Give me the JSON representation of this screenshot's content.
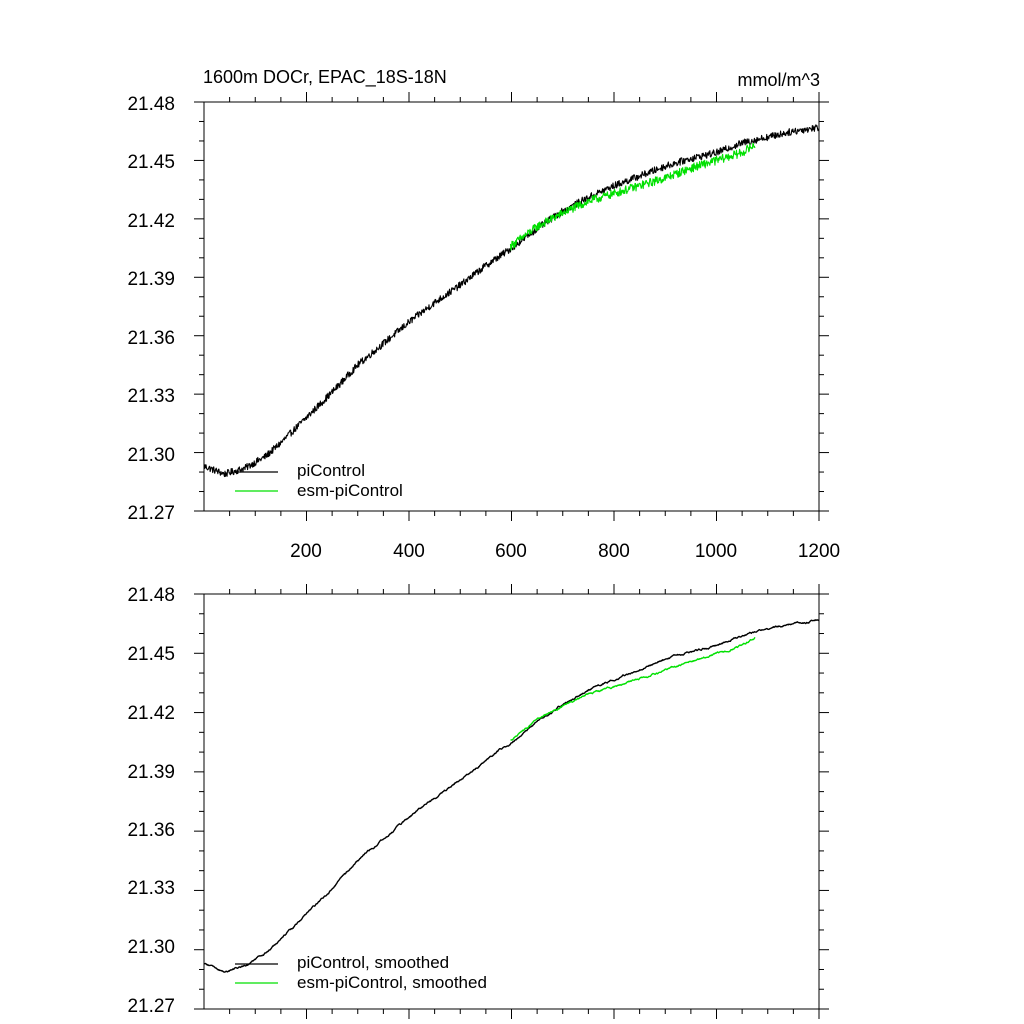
{
  "colors": {
    "piControl": "#000000",
    "esm_piControl": "#00e000"
  },
  "chart_data": [
    {
      "type": "line",
      "title": "1600m DOCr, EPAC_18S-18N",
      "units": "mmol/m^3",
      "xlim": [
        0,
        1200
      ],
      "ylim": [
        21.27,
        21.48
      ],
      "x_ticks": [
        200,
        400,
        600,
        800,
        1000,
        1200
      ],
      "x_tick_labels": [
        "200",
        "400",
        "600",
        "800",
        "1000",
        "1200"
      ],
      "y_ticks": [
        21.27,
        21.3,
        21.33,
        21.36,
        21.39,
        21.42,
        21.45,
        21.48
      ],
      "y_tick_labels": [
        "21.27",
        "21.30",
        "21.33",
        "21.36",
        "21.39",
        "21.42",
        "21.45",
        "21.48"
      ],
      "legend": [
        "piControl",
        "esm-piControl"
      ],
      "legend_position": "bottom-left",
      "smoothed": false,
      "series": [
        {
          "name": "piControl",
          "color": "#000000",
          "x": [
            0,
            40,
            80,
            120,
            150,
            200,
            250,
            300,
            350,
            400,
            450,
            500,
            550,
            600,
            650,
            700,
            750,
            800,
            850,
            900,
            950,
            1000,
            1050,
            1100,
            1150,
            1200
          ],
          "y": [
            21.293,
            21.289,
            21.292,
            21.298,
            21.305,
            21.318,
            21.331,
            21.345,
            21.356,
            21.367,
            21.377,
            21.386,
            21.396,
            21.405,
            21.415,
            21.424,
            21.431,
            21.437,
            21.442,
            21.447,
            21.451,
            21.454,
            21.459,
            21.462,
            21.465,
            21.467
          ],
          "noise": 0.0018
        },
        {
          "name": "esm-piControl",
          "color": "#00e000",
          "x": [
            598,
            650,
            700,
            750,
            800,
            850,
            900,
            950,
            1000,
            1050,
            1075
          ],
          "y": [
            21.406,
            21.416,
            21.423,
            21.429,
            21.433,
            21.437,
            21.441,
            21.446,
            21.45,
            21.454,
            21.458
          ],
          "noise": 0.0022
        }
      ]
    },
    {
      "type": "line",
      "xlim": [
        0,
        1200
      ],
      "ylim": [
        21.27,
        21.48
      ],
      "x_ticks": [
        200,
        400,
        600,
        800,
        1000,
        1200
      ],
      "y_ticks": [
        21.27,
        21.3,
        21.33,
        21.36,
        21.39,
        21.42,
        21.45,
        21.48
      ],
      "y_tick_labels": [
        "21.27",
        "21.30",
        "21.33",
        "21.36",
        "21.39",
        "21.42",
        "21.45",
        "21.48"
      ],
      "legend": [
        "piControl, smoothed",
        "esm-piControl, smoothed"
      ],
      "legend_position": "bottom-left",
      "smoothed": true,
      "series": [
        {
          "name": "piControl, smoothed",
          "color": "#000000",
          "x": [
            0,
            40,
            80,
            120,
            150,
            200,
            250,
            300,
            350,
            400,
            450,
            500,
            550,
            600,
            650,
            700,
            750,
            800,
            850,
            900,
            950,
            1000,
            1050,
            1100,
            1150,
            1200
          ],
          "y": [
            21.293,
            21.289,
            21.292,
            21.298,
            21.305,
            21.318,
            21.331,
            21.345,
            21.356,
            21.367,
            21.377,
            21.386,
            21.396,
            21.405,
            21.415,
            21.424,
            21.431,
            21.437,
            21.442,
            21.447,
            21.451,
            21.454,
            21.459,
            21.462,
            21.465,
            21.467
          ],
          "noise": 0.0006
        },
        {
          "name": "esm-piControl, smoothed",
          "color": "#00e000",
          "x": [
            598,
            650,
            700,
            750,
            800,
            850,
            900,
            950,
            1000,
            1050,
            1075
          ],
          "y": [
            21.406,
            21.416,
            21.423,
            21.429,
            21.433,
            21.437,
            21.441,
            21.446,
            21.45,
            21.454,
            21.458
          ],
          "noise": 0.0006
        }
      ]
    }
  ]
}
